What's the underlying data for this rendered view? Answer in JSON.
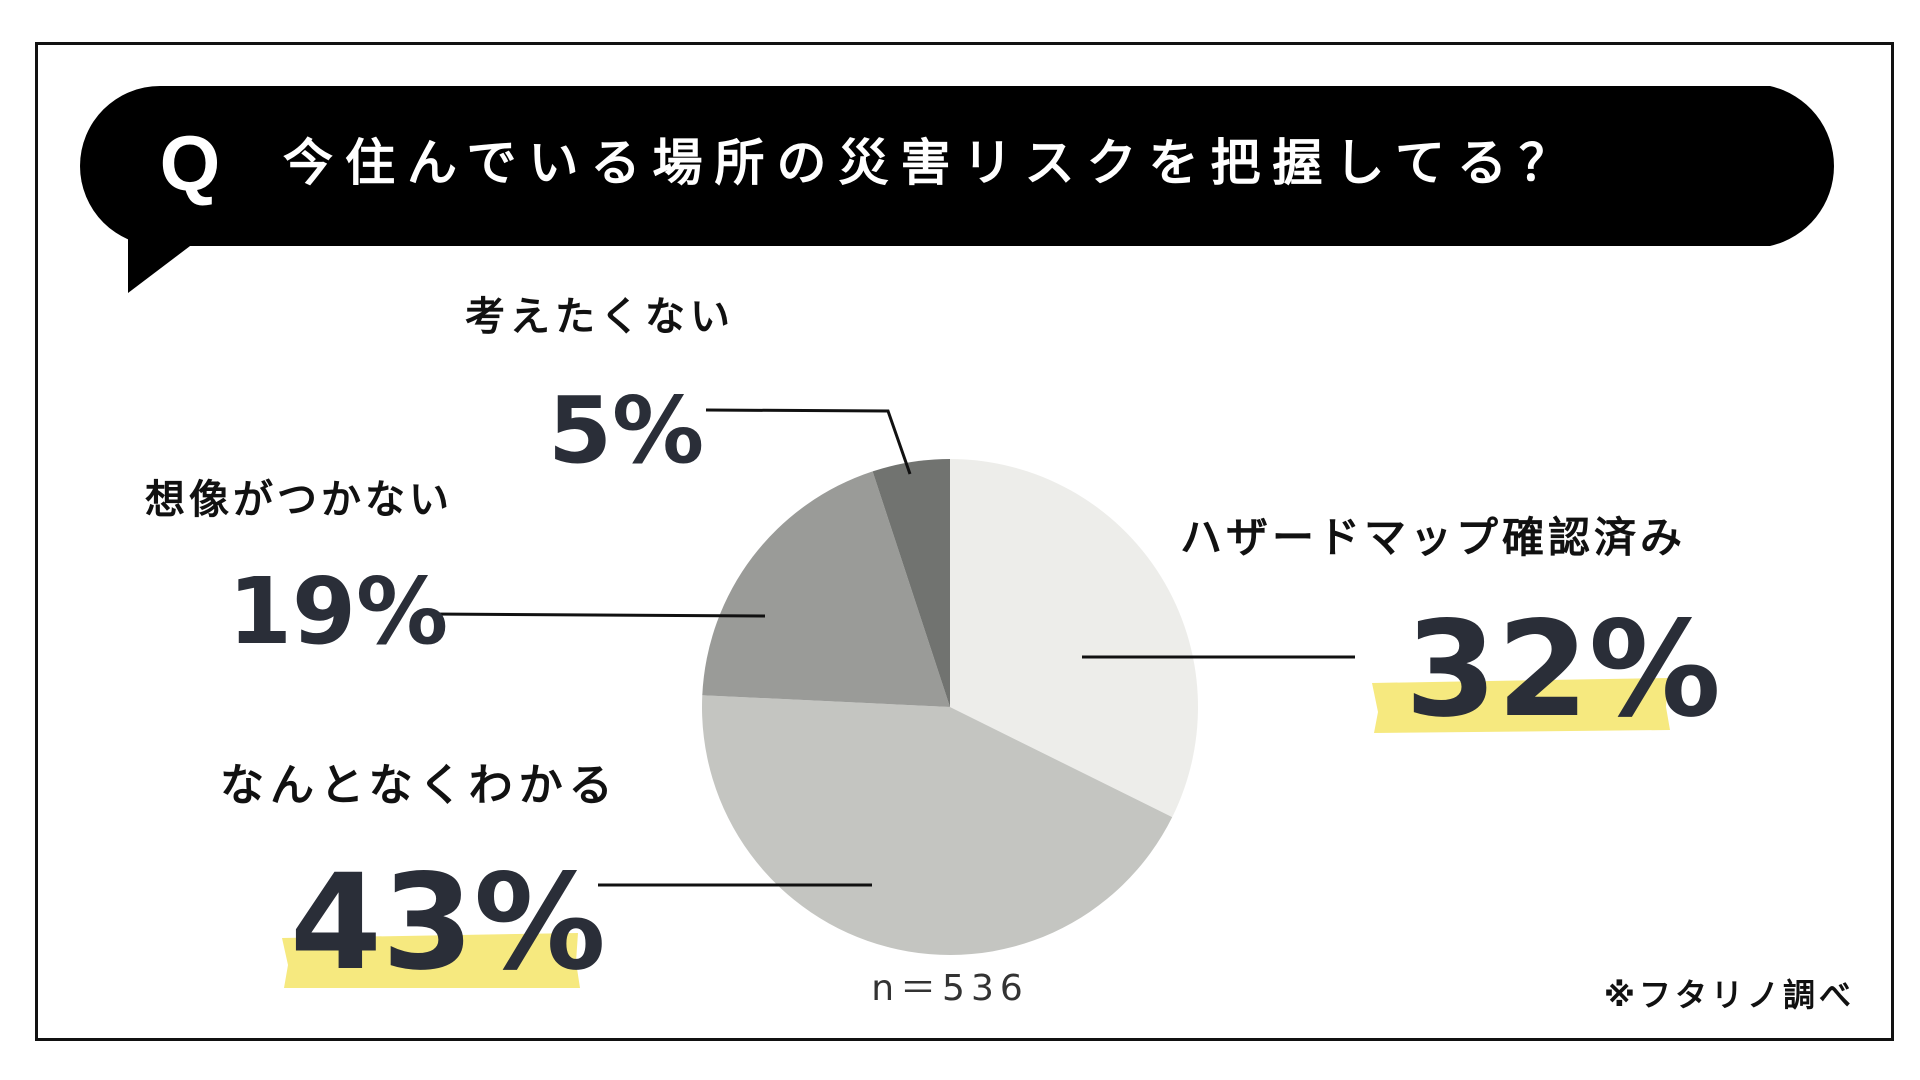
{
  "question": {
    "mark": "Q",
    "text": "今住んでいる場所の災害リスクを把握してる？"
  },
  "chart_data": {
    "type": "pie",
    "slices": [
      {
        "label": "ハザードマップ確認済み",
        "value": 32,
        "pct_text": "32%",
        "color": "#ededea",
        "highlight": true
      },
      {
        "label": "なんとなくわかる",
        "value": 43,
        "pct_text": "43%",
        "color": "#c4c5c1",
        "highlight": true
      },
      {
        "label": "想像がつかない",
        "value": 19,
        "pct_text": "19%",
        "color": "#9a9b98",
        "highlight": false
      },
      {
        "label": "考えたくない",
        "value": 5,
        "pct_text": "5%",
        "color": "#717370",
        "highlight": false
      }
    ],
    "sample_size": "n＝536"
  },
  "source": "※フタリノ調べ",
  "colors": {
    "banner": "#000000",
    "pct_text": "#2a2e38",
    "label_text": "#111111",
    "highlight": "#f6e97f"
  }
}
